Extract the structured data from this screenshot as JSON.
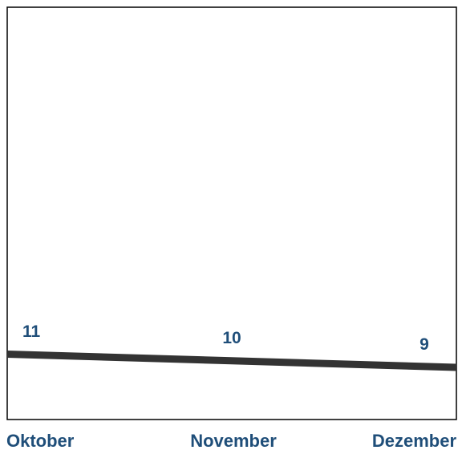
{
  "chart_data": {
    "type": "line",
    "categories": [
      "Oktober",
      "November",
      "Dezember"
    ],
    "series": [
      {
        "values": [
          11,
          10,
          9
        ]
      }
    ],
    "data_labels": [
      "11",
      "10",
      "9"
    ],
    "title": "",
    "xlabel": "",
    "ylabel": "",
    "grid": false,
    "legend": "none",
    "colors": {
      "line": "#333333",
      "text": "#1f4e79",
      "frame": "#000000",
      "background": "#ffffff"
    }
  }
}
